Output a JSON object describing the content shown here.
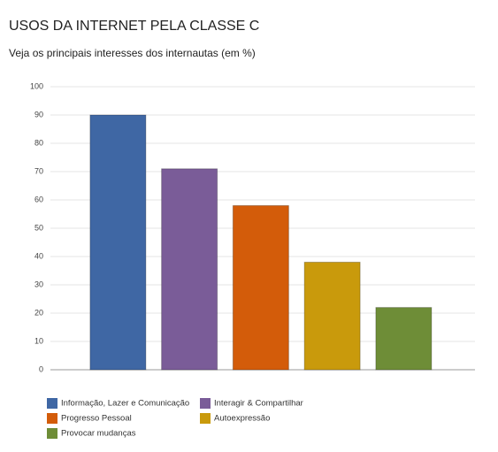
{
  "chart_data": {
    "type": "bar",
    "title": "USOS DA INTERNET PELA CLASSE C",
    "subtitle": "Veja os principais interesses dos internautas (em %)",
    "categories": [
      "Informação, Lazer e Comunicação",
      "Interagir & Compartilhar",
      "Progresso Pessoal",
      "Autoexpressão",
      "Provocar mudanças"
    ],
    "values": [
      90,
      71,
      58,
      38,
      22
    ],
    "colors": [
      "#3f67a4",
      "#7a5c98",
      "#d35c0a",
      "#c99a0c",
      "#6e8d37"
    ],
    "ylim": [
      0,
      100
    ],
    "yticks": [
      0,
      10,
      20,
      30,
      40,
      50,
      60,
      70,
      80,
      90,
      100
    ],
    "grid": true
  }
}
